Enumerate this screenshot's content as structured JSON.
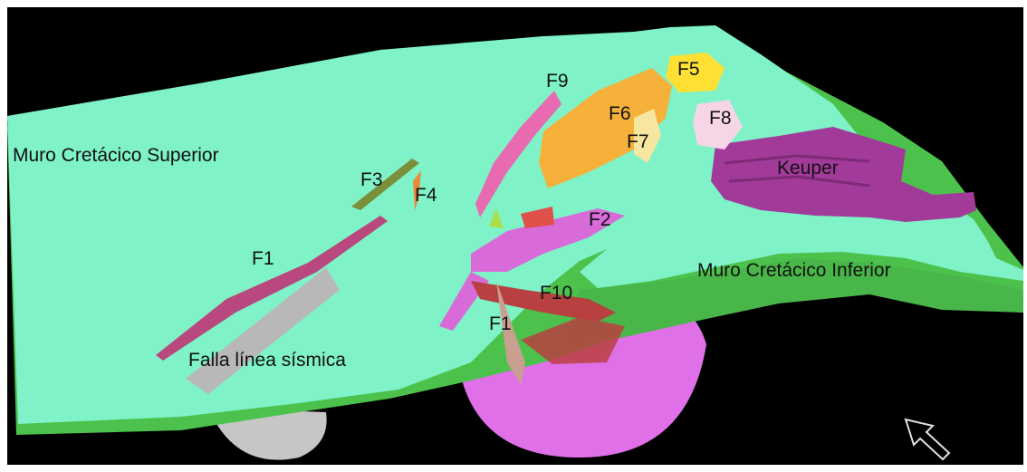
{
  "scene": {
    "title": "",
    "background_color": "#000000",
    "frame_color": "#ffffff"
  },
  "surfaces": [
    {
      "id": "muro-superior",
      "color": "#7ff2c8"
    },
    {
      "id": "muro-inferior",
      "color": "#4cc24c"
    },
    {
      "id": "keuper",
      "color": "#a23a9a"
    },
    {
      "id": "dome",
      "color": "#e070e8"
    },
    {
      "id": "gray-dome",
      "color": "#c6c6c6"
    }
  ],
  "labels": {
    "muro_superior": "Muro Cretácico Superior",
    "muro_inferior": "Muro Cretácico Inferior",
    "keuper": "Keuper",
    "falla": "Falla línea sísmica",
    "f1_left": "F1",
    "f1_center": "F1",
    "f2": "F2",
    "f3": "F3",
    "f4": "F4",
    "f5": "F5",
    "f6": "F6",
    "f7": "F7",
    "f8": "F8",
    "f9": "F9",
    "f10": "F10"
  },
  "faults": [
    {
      "id": "F1",
      "color": "#b8487e"
    },
    {
      "id": "F2",
      "color": "#d86bd8"
    },
    {
      "id": "F3",
      "color": "#7a8f3a"
    },
    {
      "id": "F4",
      "color": "#e88a3a"
    },
    {
      "id": "F5",
      "color": "#ffe033"
    },
    {
      "id": "F6",
      "color": "#f5b13a"
    },
    {
      "id": "F7",
      "color": "#f7e6a0"
    },
    {
      "id": "F8",
      "color": "#f6d6e6"
    },
    {
      "id": "F9",
      "color": "#e86ab0"
    },
    {
      "id": "F10",
      "color": "#b84040"
    },
    {
      "id": "Falla línea sísmica",
      "color": "#b8b8b8"
    }
  ],
  "icons": {
    "pointer": "pointer-arrow-icon"
  }
}
